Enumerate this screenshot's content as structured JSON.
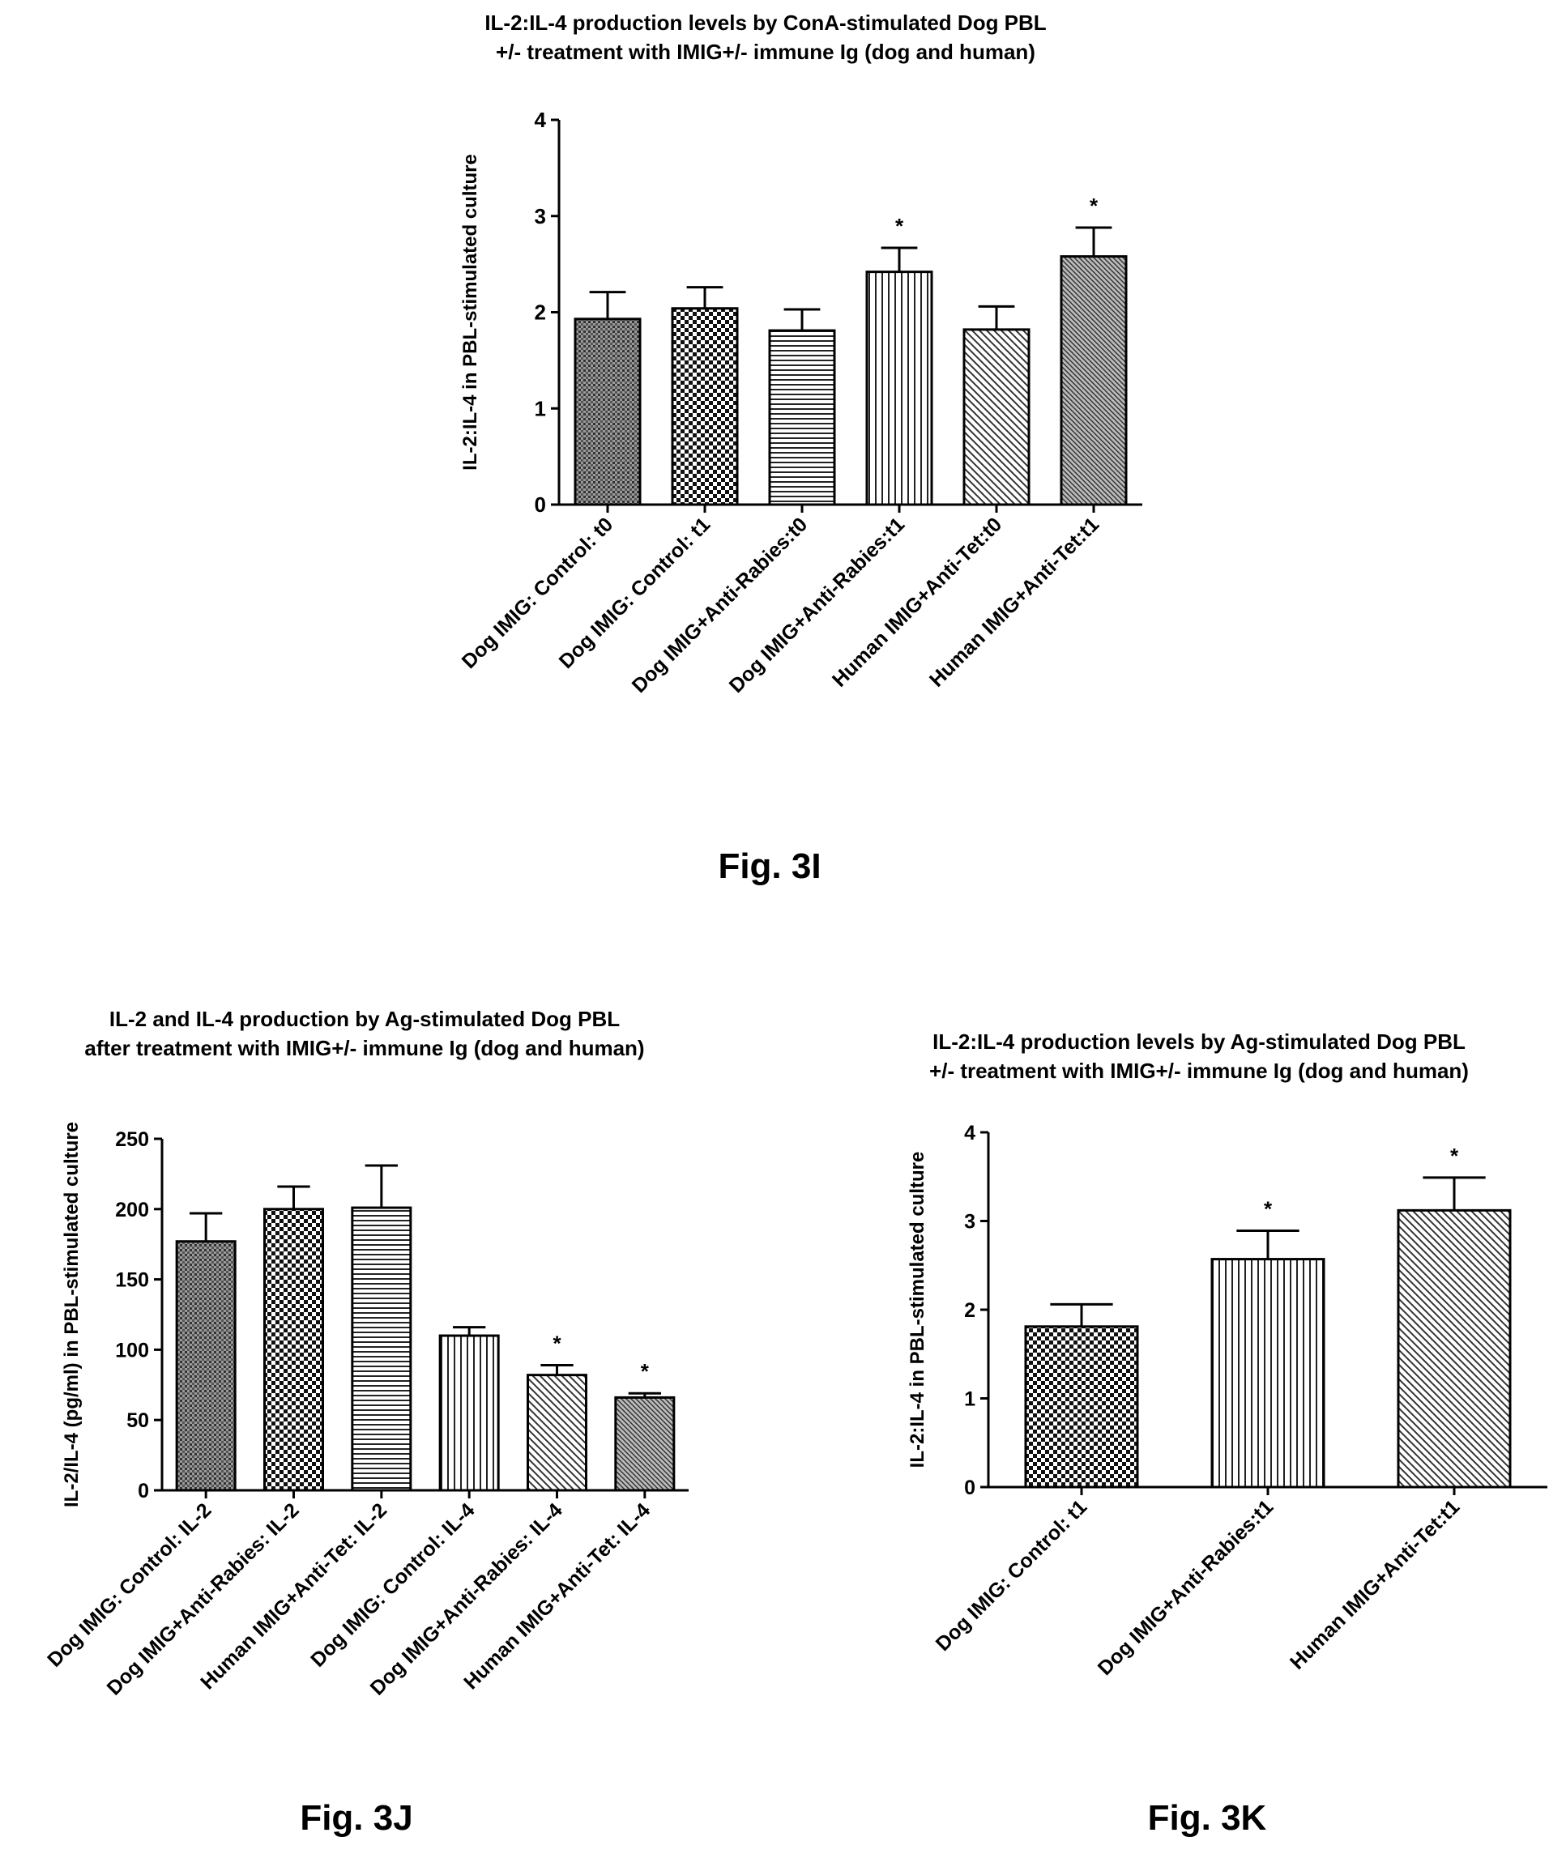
{
  "figures": [
    {
      "label": "Fig. 3I"
    },
    {
      "label": "Fig. 3J"
    },
    {
      "label": "Fig. 3K"
    }
  ],
  "chart_data": [
    {
      "type": "bar",
      "title": "IL-2:IL-4 production levels by ConA-stimulated Dog PBL +/- treatment with IMIG+/- immune Ig (dog and human)",
      "title_lines": [
        "IL-2:IL-4 production levels by ConA-stimulated Dog PBL",
        "+/-  treatment with IMIG+/- immune  Ig (dog and human)"
      ],
      "xlabel": "",
      "ylabel": "IL-2:IL-4 in PBL-stimulated culture",
      "ylim": [
        0,
        4
      ],
      "yticks": [
        "0",
        "1",
        "2",
        "3",
        "4"
      ],
      "grid": false,
      "categories": [
        "Dog IMIG: Control: t0",
        "Dog IMIG: Control: t1",
        "Dog IMIG+Anti-Rabies:t0",
        "Dog IMIG+Anti-Rabies:t1",
        "Human IMIG+Anti-Tet:t0",
        "Human IMIG+Anti-Tet:t1"
      ],
      "values": [
        1.93,
        2.04,
        1.81,
        2.42,
        1.82,
        2.58
      ],
      "errors": [
        0.28,
        0.22,
        0.22,
        0.25,
        0.24,
        0.3
      ],
      "annotations": [
        "",
        "",
        "",
        "*",
        "",
        "*"
      ],
      "patterns": [
        "dots",
        "checker",
        "hlines",
        "vlines",
        "diag",
        "diag-dense"
      ]
    },
    {
      "type": "bar",
      "title": "IL-2 and IL-4 production by Ag-stimulated Dog PBL after treatment with IMIG+/- immune Ig (dog and human)",
      "title_lines": [
        "IL-2 and  IL-4 production by Ag-stimulated Dog PBL",
        "after treatment with IMIG+/- immune  Ig (dog and human)"
      ],
      "xlabel": "",
      "ylabel": "IL-2/IL-4 (pg/ml) in PBL-stimulated culture",
      "ylim": [
        0,
        250
      ],
      "yticks": [
        "0",
        "50",
        "100",
        "150",
        "200",
        "250"
      ],
      "grid": false,
      "categories": [
        "Dog IMIG: Control: IL-2",
        "Dog IMIG+Anti-Rabies: IL-2",
        "Human IMIG+Anti-Tet: IL-2",
        "Dog IMIG: Control: IL-4",
        "Dog IMIG+Anti-Rabies: IL-4",
        "Human IMIG+Anti-Tet: IL-4"
      ],
      "values": [
        177,
        200,
        201,
        110,
        82,
        66
      ],
      "errors": [
        20,
        16,
        30,
        6,
        7,
        3
      ],
      "annotations": [
        "",
        "",
        "",
        "",
        "*",
        "*"
      ],
      "patterns": [
        "dots",
        "checker",
        "hlines",
        "vlines",
        "diag",
        "diag-dense"
      ]
    },
    {
      "type": "bar",
      "title": "IL-2:IL-4 production levels by Ag-stimulated Dog PBL +/- treatment with IMIG+/- immune Ig (dog and human)",
      "title_lines": [
        "IL-2:IL-4 production levels by Ag-stimulated Dog PBL",
        "+/-  treatment with IMIG+/- immune  Ig (dog and human)"
      ],
      "xlabel": "",
      "ylabel": "IL-2:IL-4 in PBL-stimulated culture",
      "ylim": [
        0,
        4
      ],
      "yticks": [
        "0",
        "1",
        "2",
        "3",
        "4"
      ],
      "grid": false,
      "categories": [
        "Dog IMIG: Control: t1",
        "Dog IMIG+Anti-Rabies:t1",
        "Human IMIG+Anti-Tet:t1"
      ],
      "values": [
        1.81,
        2.57,
        3.12
      ],
      "errors": [
        0.25,
        0.32,
        0.37
      ],
      "annotations": [
        "",
        "*",
        "*"
      ],
      "patterns": [
        "checker",
        "vlines",
        "diag"
      ]
    }
  ]
}
